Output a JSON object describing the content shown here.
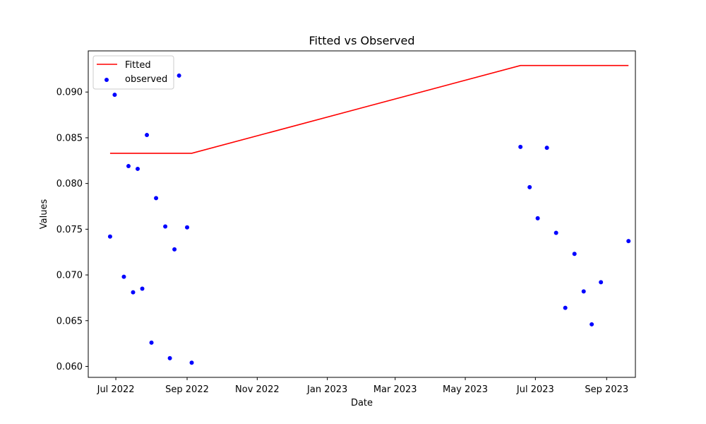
{
  "chart_data": {
    "type": "line",
    "title": "Fitted vs Observed",
    "xlabel": "Date",
    "ylabel": "Values",
    "grid": false,
    "legend_position": "top-left",
    "x_range": [
      "2022-06-07",
      "2023-09-26"
    ],
    "ylim": [
      0.0588,
      0.0945
    ],
    "x_ticks": [
      {
        "date": "2022-07-01",
        "label": "Jul 2022"
      },
      {
        "date": "2022-09-01",
        "label": "Sep 2022"
      },
      {
        "date": "2022-11-01",
        "label": "Nov 2022"
      },
      {
        "date": "2023-01-01",
        "label": "Jan 2023"
      },
      {
        "date": "2023-03-01",
        "label": "Mar 2023"
      },
      {
        "date": "2023-05-01",
        "label": "May 2023"
      },
      {
        "date": "2023-07-01",
        "label": "Jul 2023"
      },
      {
        "date": "2023-09-01",
        "label": "Sep 2023"
      }
    ],
    "y_ticks": [
      {
        "value": 0.06,
        "label": "0.060"
      },
      {
        "value": 0.065,
        "label": "0.065"
      },
      {
        "value": 0.07,
        "label": "0.070"
      },
      {
        "value": 0.075,
        "label": "0.075"
      },
      {
        "value": 0.08,
        "label": "0.080"
      },
      {
        "value": 0.085,
        "label": "0.085"
      },
      {
        "value": 0.09,
        "label": "0.090"
      }
    ],
    "series": [
      {
        "name": "Fitted",
        "kind": "line",
        "color": "#ff0000",
        "points": [
          {
            "x": "2022-06-26",
            "y": 0.0833
          },
          {
            "x": "2022-09-05",
            "y": 0.0833
          },
          {
            "x": "2023-06-18",
            "y": 0.0929
          },
          {
            "x": "2023-09-20",
            "y": 0.0929
          }
        ]
      },
      {
        "name": "observed",
        "kind": "scatter",
        "color": "#0000ff",
        "points": [
          {
            "x": "2022-06-26",
            "y": 0.0742
          },
          {
            "x": "2022-06-30",
            "y": 0.0897
          },
          {
            "x": "2022-07-08",
            "y": 0.0698
          },
          {
            "x": "2022-07-12",
            "y": 0.0819
          },
          {
            "x": "2022-07-16",
            "y": 0.0681
          },
          {
            "x": "2022-07-20",
            "y": 0.0816
          },
          {
            "x": "2022-07-24",
            "y": 0.0685
          },
          {
            "x": "2022-07-28",
            "y": 0.0853
          },
          {
            "x": "2022-08-01",
            "y": 0.0626
          },
          {
            "x": "2022-08-05",
            "y": 0.0784
          },
          {
            "x": "2022-08-13",
            "y": 0.0753
          },
          {
            "x": "2022-08-17",
            "y": 0.0609
          },
          {
            "x": "2022-08-21",
            "y": 0.0728
          },
          {
            "x": "2022-08-25",
            "y": 0.0918
          },
          {
            "x": "2022-09-01",
            "y": 0.0752
          },
          {
            "x": "2022-09-05",
            "y": 0.0604
          },
          {
            "x": "2023-06-18",
            "y": 0.084
          },
          {
            "x": "2023-06-26",
            "y": 0.0796
          },
          {
            "x": "2023-07-03",
            "y": 0.0762
          },
          {
            "x": "2023-07-11",
            "y": 0.0839
          },
          {
            "x": "2023-07-19",
            "y": 0.0746
          },
          {
            "x": "2023-07-27",
            "y": 0.0664
          },
          {
            "x": "2023-08-04",
            "y": 0.0723
          },
          {
            "x": "2023-08-12",
            "y": 0.0682
          },
          {
            "x": "2023-08-19",
            "y": 0.0646
          },
          {
            "x": "2023-08-27",
            "y": 0.0692
          },
          {
            "x": "2023-09-20",
            "y": 0.0737
          }
        ]
      }
    ]
  }
}
